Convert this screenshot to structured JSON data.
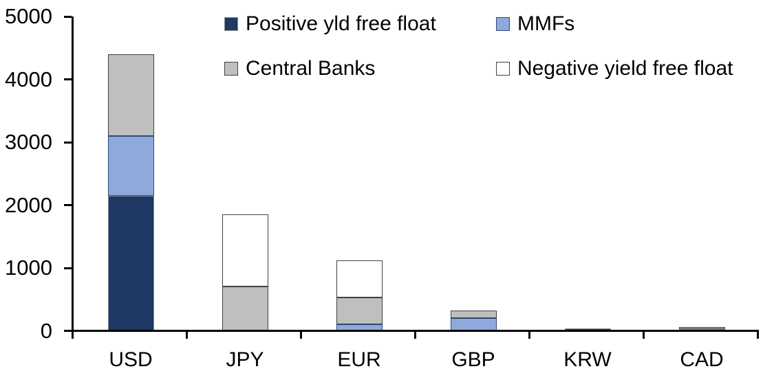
{
  "chart_data": {
    "type": "bar",
    "stacked": true,
    "title": "",
    "xlabel": "",
    "ylabel": "",
    "categories": [
      "USD",
      "JPY",
      "EUR",
      "GBP",
      "KRW",
      "CAD"
    ],
    "series": [
      {
        "name": "Positive yld free float",
        "color": "#1F3864",
        "border": "#8C8C8C",
        "values": [
          2150,
          0,
          0,
          0,
          40,
          25
        ]
      },
      {
        "name": "MMFs",
        "color": "#8EA9DB",
        "border": "#2E4A76",
        "values": [
          950,
          0,
          100,
          200,
          0,
          0
        ]
      },
      {
        "name": "Central Banks",
        "color": "#BFBFBF",
        "border": "#404040",
        "values": [
          1300,
          700,
          430,
          120,
          0,
          35
        ]
      },
      {
        "name": "Negative yield free float",
        "color": "#FFFFFF",
        "border": "#404040",
        "values": [
          0,
          1150,
          590,
          0,
          0,
          0
        ]
      }
    ],
    "totals": {
      "USD": 4400,
      "JPY": 1850,
      "EUR": 1120,
      "GBP": 320,
      "KRW": 40,
      "CAD": 60
    },
    "ylim": [
      0,
      5000
    ],
    "yticks": [
      0,
      1000,
      2000,
      3000,
      4000,
      5000
    ],
    "grid": false,
    "legend_position": "top-two-rows"
  }
}
